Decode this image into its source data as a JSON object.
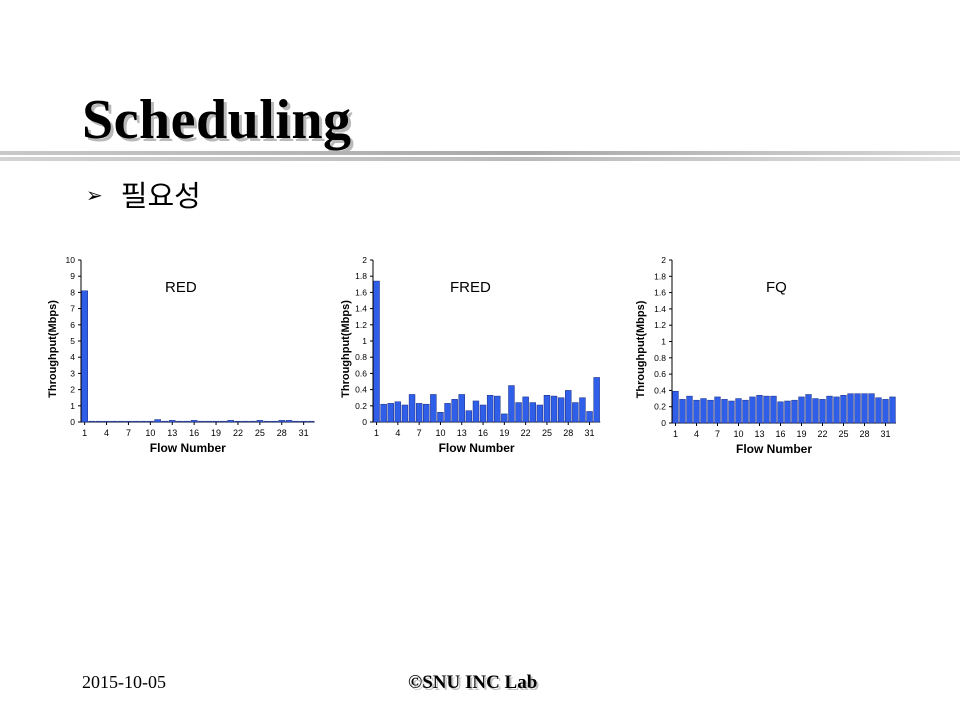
{
  "slide": {
    "title": "Scheduling",
    "bullet_symbol": "➢",
    "bullet_text": "필요성",
    "date": "2015-10-05",
    "lab": "©SNU INC Lab"
  },
  "colors": {
    "bar": "#2f5fe8",
    "bar_stroke": "#1a2a80"
  },
  "chart_data": [
    {
      "type": "bar",
      "title": "RED",
      "xlabel": "Flow Number",
      "ylabel": "Throughput(Mbps)",
      "ylim": [
        0,
        10
      ],
      "yticks": [
        "0",
        "1",
        "2",
        "3",
        "4",
        "5",
        "6",
        "7",
        "8",
        "9",
        "10"
      ],
      "xticks": [
        "1",
        "4",
        "7",
        "10",
        "13",
        "16",
        "19",
        "22",
        "25",
        "28",
        "31"
      ],
      "x": [
        1,
        2,
        3,
        4,
        5,
        6,
        7,
        8,
        9,
        10,
        11,
        12,
        13,
        14,
        15,
        16,
        17,
        18,
        19,
        20,
        21,
        22,
        23,
        24,
        25,
        26,
        27,
        28,
        29,
        30,
        31,
        32
      ],
      "values": [
        8.1,
        0.05,
        0.05,
        0.05,
        0.05,
        0.05,
        0.05,
        0.05,
        0.05,
        0.05,
        0.15,
        0.05,
        0.1,
        0.05,
        0.05,
        0.1,
        0.05,
        0.05,
        0.05,
        0.05,
        0.1,
        0.05,
        0.05,
        0.05,
        0.1,
        0.05,
        0.05,
        0.1,
        0.1,
        0.05,
        0.05,
        0.05
      ]
    },
    {
      "type": "bar",
      "title": "FRED",
      "xlabel": "Flow Number",
      "ylabel": "Throughput(Mbps)",
      "ylim": [
        0,
        2
      ],
      "yticks": [
        "0",
        "0.2",
        "0.4",
        "0.6",
        "0.8",
        "1",
        "1.2",
        "1.4",
        "1.6",
        "1.8",
        "2"
      ],
      "xticks": [
        "1",
        "4",
        "7",
        "10",
        "13",
        "16",
        "19",
        "22",
        "25",
        "28",
        "31"
      ],
      "x": [
        1,
        2,
        3,
        4,
        5,
        6,
        7,
        8,
        9,
        10,
        11,
        12,
        13,
        14,
        15,
        16,
        17,
        18,
        19,
        20,
        21,
        22,
        23,
        24,
        25,
        26,
        27,
        28,
        29,
        30,
        31,
        32
      ],
      "values": [
        1.74,
        0.22,
        0.23,
        0.25,
        0.21,
        0.34,
        0.23,
        0.22,
        0.34,
        0.12,
        0.23,
        0.28,
        0.34,
        0.14,
        0.26,
        0.21,
        0.33,
        0.32,
        0.1,
        0.45,
        0.24,
        0.31,
        0.24,
        0.21,
        0.33,
        0.32,
        0.3,
        0.39,
        0.24,
        0.3,
        0.13,
        0.55
      ]
    },
    {
      "type": "bar",
      "title": "FQ",
      "xlabel": "Flow Number",
      "ylabel": "Throughput(Mbps)",
      "ylim": [
        0,
        2
      ],
      "yticks": [
        "0",
        "0.2",
        "0.4",
        "0.6",
        "0.8",
        "1",
        "1.2",
        "1.4",
        "1.6",
        "1.8",
        "2"
      ],
      "xticks": [
        "1",
        "4",
        "7",
        "10",
        "13",
        "16",
        "19",
        "22",
        "25",
        "28",
        "31"
      ],
      "x": [
        1,
        2,
        3,
        4,
        5,
        6,
        7,
        8,
        9,
        10,
        11,
        12,
        13,
        14,
        15,
        16,
        17,
        18,
        19,
        20,
        21,
        22,
        23,
        24,
        25,
        26,
        27,
        28,
        29,
        30,
        31,
        32
      ],
      "values": [
        0.39,
        0.29,
        0.33,
        0.28,
        0.3,
        0.28,
        0.32,
        0.29,
        0.27,
        0.3,
        0.28,
        0.32,
        0.34,
        0.33,
        0.33,
        0.26,
        0.27,
        0.28,
        0.32,
        0.35,
        0.3,
        0.29,
        0.33,
        0.32,
        0.34,
        0.36,
        0.36,
        0.36,
        0.36,
        0.31,
        0.29,
        0.32
      ]
    }
  ]
}
